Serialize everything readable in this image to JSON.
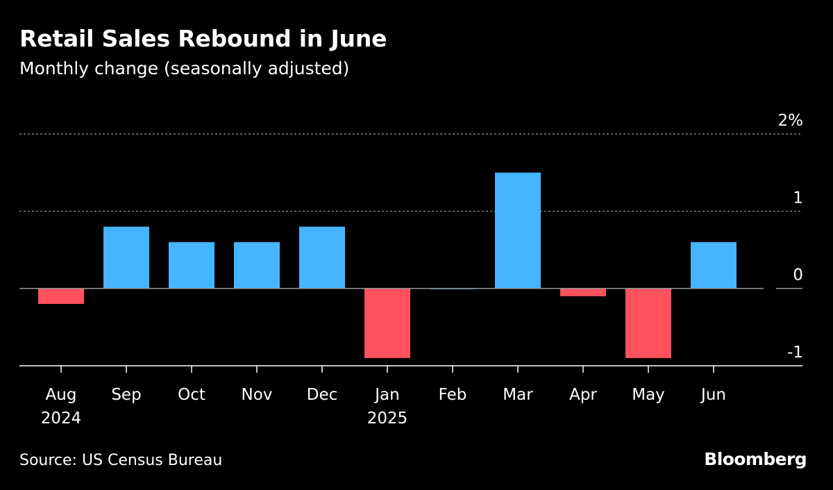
{
  "title": "Retail Sales Rebound in June",
  "subtitle": "Monthly change (seasonally adjusted)",
  "source": "Source: US Census Bureau",
  "brand": "Bloomberg",
  "colors": {
    "positive": "#45b5ff",
    "negative": "#ff525c",
    "background": "#000000",
    "text": "#ffffff",
    "grid": "#9a9a9a",
    "axis": "#ffffff"
  },
  "chart_data": {
    "type": "bar",
    "title": "Retail Sales Rebound in June",
    "subtitle": "Monthly change (seasonally adjusted)",
    "xlabel": "",
    "ylabel": "",
    "categories": [
      "Aug",
      "Sep",
      "Oct",
      "Nov",
      "Dec",
      "Jan",
      "Feb",
      "Mar",
      "Apr",
      "May",
      "Jun"
    ],
    "year_labels": [
      "2024",
      "",
      "",
      "",
      "",
      "2025",
      "",
      "",
      "",
      "",
      ""
    ],
    "values": [
      -0.2,
      0.8,
      0.6,
      0.6,
      0.8,
      -0.9,
      0.0,
      1.5,
      -0.1,
      -0.9,
      0.6
    ],
    "ylim": [
      -1,
      2
    ],
    "y_ticks": [
      {
        "value": 2,
        "label": "2%"
      },
      {
        "value": 1,
        "label": "1"
      },
      {
        "value": 0,
        "label": "0"
      },
      {
        "value": -1,
        "label": "-1"
      }
    ],
    "grid": true,
    "legend": "none"
  }
}
